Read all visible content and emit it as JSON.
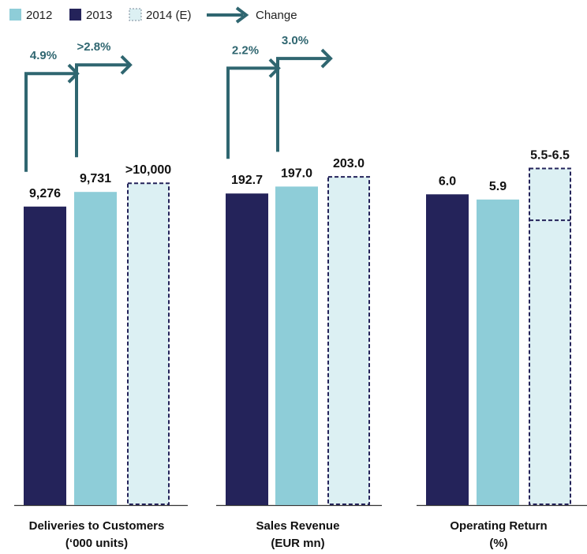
{
  "colors": {
    "dark": "#24235a",
    "light": "#8ecdd8",
    "est_fill": "#dcf0f3",
    "est_border": "#24235a",
    "arrow": "#2f6670",
    "text": "#111111"
  },
  "legend": [
    {
      "label": "2012",
      "style": "light"
    },
    {
      "label": "2013",
      "style": "dark"
    },
    {
      "label": "2014 (E)",
      "style": "est"
    },
    {
      "label": "Change",
      "style": "arrow"
    }
  ],
  "chart_data": {
    "type": "bar",
    "series_order": [
      "2013",
      "2012",
      "2014 (E)"
    ],
    "groups": [
      {
        "category": "Deliveries to Customers",
        "unit_label": "(‘000 units)",
        "ylim": [
          0,
          10300
        ],
        "bars": [
          {
            "series": "2013",
            "value": 9276,
            "label": "9,276",
            "style": "dark"
          },
          {
            "series": "2012",
            "value": 9731,
            "label": "9,731",
            "style": "light"
          },
          {
            "series": "2014 (E)",
            "value": 10000,
            "label": ">10,000",
            "style": "est"
          }
        ],
        "changes": [
          {
            "from": 0,
            "label": "4.9%"
          },
          {
            "from": 1,
            "label": ">2.8%"
          }
        ]
      },
      {
        "category": "Sales Revenue",
        "unit_label": "(EUR mn)",
        "ylim": [
          0,
          205
        ],
        "bars": [
          {
            "series": "2013",
            "value": 192.7,
            "label": "192.7",
            "style": "dark"
          },
          {
            "series": "2012",
            "value": 197.0,
            "label": "197.0",
            "style": "light"
          },
          {
            "series": "2014 (E)",
            "value": 203.0,
            "label": "203.0",
            "style": "est"
          }
        ],
        "changes": [
          {
            "from": 0,
            "label": "2.2%"
          },
          {
            "from": 1,
            "label": "3.0%"
          }
        ]
      },
      {
        "category": "Operating Return",
        "unit_label": "(%)",
        "ylim": [
          0,
          6.4
        ],
        "bars": [
          {
            "series": "2013",
            "value": 6.0,
            "label": "6.0",
            "style": "dark"
          },
          {
            "series": "2012",
            "value": 5.9,
            "label": "5.9",
            "style": "light"
          },
          {
            "series": "2014 (E)",
            "value": 6.5,
            "low": 5.5,
            "label": "5.5-6.5",
            "style": "est_range"
          }
        ],
        "changes": []
      }
    ]
  }
}
